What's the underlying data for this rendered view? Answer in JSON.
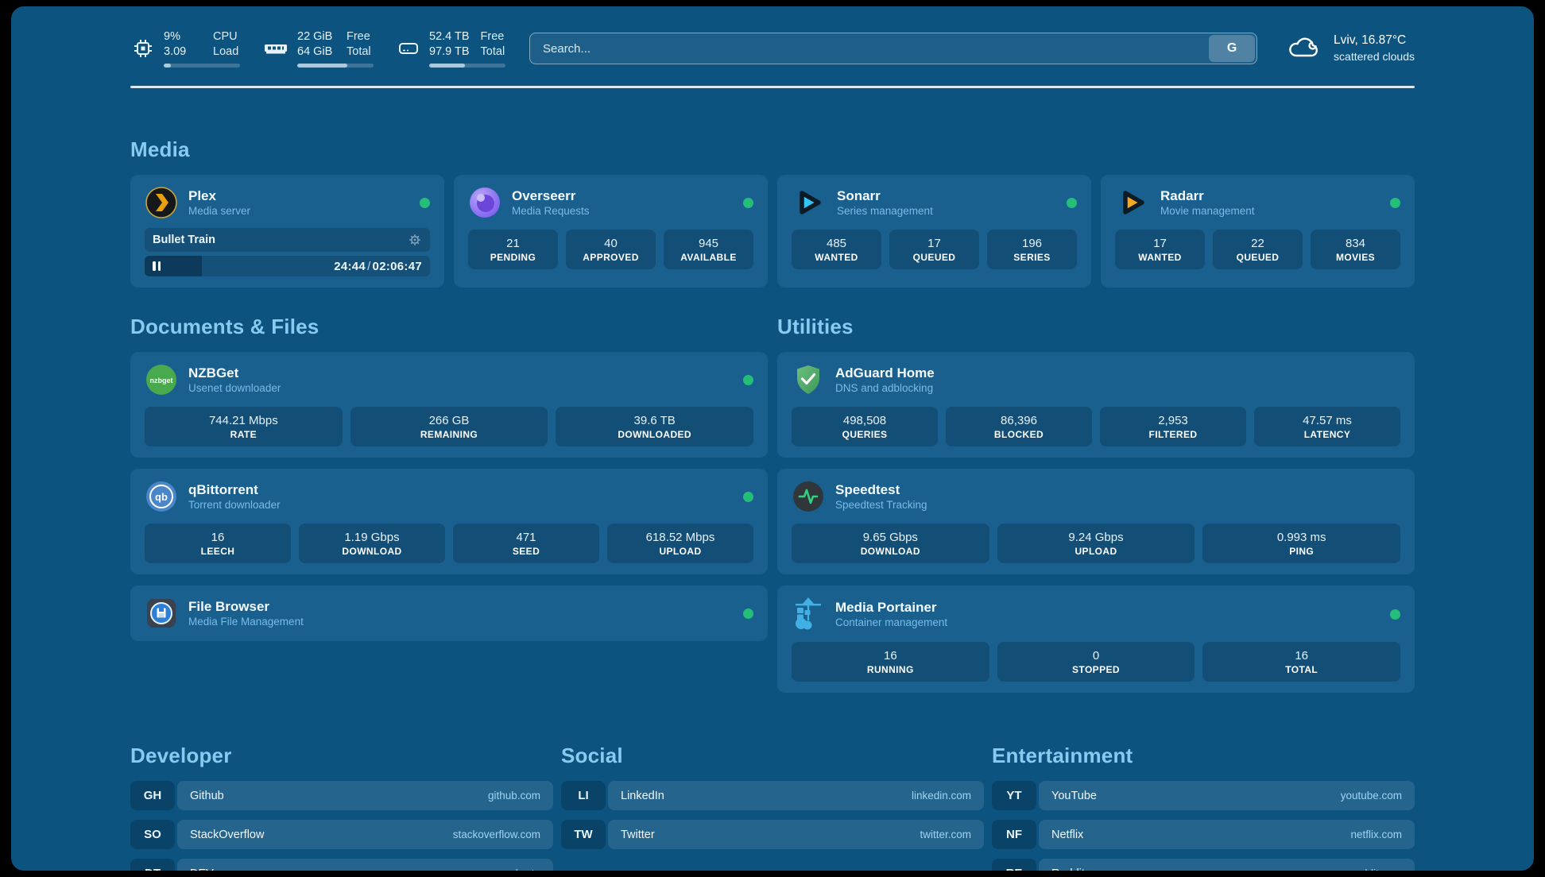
{
  "theme": {
    "background": "#000000",
    "surface": "#0D5380",
    "card": "#19608E",
    "section_title": "#87CBF0",
    "status_online": "#24BE78",
    "plex_accent": "#E8A00C",
    "sonarr_accent": "#35C5F4",
    "radarr_accent": "#F5A623",
    "speedtest_accent": "#35D07F"
  },
  "header": {
    "system_stats": [
      {
        "icon": "cpu-chip-icon",
        "values": [
          "9%",
          "3.09"
        ],
        "labels": [
          "CPU",
          "Load"
        ],
        "progress_pct": 9
      },
      {
        "icon": "ram-icon",
        "values": [
          "22 GiB",
          "64 GiB"
        ],
        "labels": [
          "Free",
          "Total"
        ],
        "progress_pct": 66
      },
      {
        "icon": "disk-icon",
        "values": [
          "52.4 TB",
          "97.9 TB"
        ],
        "labels": [
          "Free",
          "Total"
        ],
        "progress_pct": 47
      }
    ],
    "search": {
      "placeholder": "Search...",
      "engine_button_label": "G"
    },
    "weather": {
      "icon": "cloud-icon",
      "location_temperature": "Lviv, 16.87°C",
      "condition": "scattered clouds"
    }
  },
  "sections": {
    "media": {
      "title": "Media",
      "apps": [
        {
          "id": "plex",
          "icon": "plex-icon",
          "name": "Plex",
          "subtitle": "Media server",
          "online": true,
          "now_playing": {
            "title": "Bullet Train",
            "elapsed": "24:44",
            "duration": "02:06:47",
            "progress_pct": 20
          }
        },
        {
          "id": "overseerr",
          "icon": "overseerr-icon",
          "name": "Overseerr",
          "subtitle": "Media Requests",
          "online": true,
          "stats": [
            {
              "value": "21",
              "label": "PENDING"
            },
            {
              "value": "40",
              "label": "APPROVED"
            },
            {
              "value": "945",
              "label": "AVAILABLE"
            }
          ]
        },
        {
          "id": "sonarr",
          "icon": "sonarr-icon",
          "name": "Sonarr",
          "subtitle": "Series management",
          "online": true,
          "stats": [
            {
              "value": "485",
              "label": "WANTED"
            },
            {
              "value": "17",
              "label": "QUEUED"
            },
            {
              "value": "196",
              "label": "SERIES"
            }
          ]
        },
        {
          "id": "radarr",
          "icon": "radarr-icon",
          "name": "Radarr",
          "subtitle": "Movie management",
          "online": true,
          "stats": [
            {
              "value": "17",
              "label": "WANTED"
            },
            {
              "value": "22",
              "label": "QUEUED"
            },
            {
              "value": "834",
              "label": "MOVIES"
            }
          ]
        }
      ]
    },
    "documents_files": {
      "title": "Documents & Files",
      "apps": [
        {
          "id": "nzbget",
          "icon": "nzbget-icon",
          "name": "NZBGet",
          "subtitle": "Usenet downloader",
          "online": true,
          "stats": [
            {
              "value": "744.21 Mbps",
              "label": "RATE"
            },
            {
              "value": "266 GB",
              "label": "REMAINING"
            },
            {
              "value": "39.6 TB",
              "label": "DOWNLOADED"
            }
          ]
        },
        {
          "id": "qbittorrent",
          "icon": "qbittorrent-icon",
          "name": "qBittorrent",
          "subtitle": "Torrent downloader",
          "online": true,
          "stats": [
            {
              "value": "16",
              "label": "LEECH"
            },
            {
              "value": "1.19 Gbps",
              "label": "DOWNLOAD"
            },
            {
              "value": "471",
              "label": "SEED"
            },
            {
              "value": "618.52 Mbps",
              "label": "UPLOAD"
            }
          ]
        },
        {
          "id": "filebrowser",
          "icon": "filebrowser-icon",
          "name": "File Browser",
          "subtitle": "Media File Management",
          "online": true
        }
      ]
    },
    "utilities": {
      "title": "Utilities",
      "apps": [
        {
          "id": "adguard",
          "icon": "adguard-icon",
          "name": "AdGuard Home",
          "subtitle": "DNS and adblocking",
          "online": false,
          "stats": [
            {
              "value": "498,508",
              "label": "QUERIES"
            },
            {
              "value": "86,396",
              "label": "BLOCKED"
            },
            {
              "value": "2,953",
              "label": "FILTERED"
            },
            {
              "value": "47.57 ms",
              "label": "LATENCY"
            }
          ]
        },
        {
          "id": "speedtest",
          "icon": "speedtest-icon",
          "name": "Speedtest",
          "subtitle": "Speedtest Tracking",
          "online": false,
          "stats": [
            {
              "value": "9.65 Gbps",
              "label": "DOWNLOAD"
            },
            {
              "value": "9.24 Gbps",
              "label": "UPLOAD"
            },
            {
              "value": "0.993 ms",
              "label": "PING"
            }
          ]
        },
        {
          "id": "portainer",
          "icon": "portainer-icon",
          "name": "Media Portainer",
          "subtitle": "Container management",
          "online": true,
          "stats": [
            {
              "value": "16",
              "label": "RUNNING"
            },
            {
              "value": "0",
              "label": "STOPPED"
            },
            {
              "value": "16",
              "label": "TOTAL"
            }
          ]
        }
      ]
    }
  },
  "bookmarks": [
    {
      "title": "Developer",
      "links": [
        {
          "abbr": "GH",
          "name": "Github",
          "url": "github.com"
        },
        {
          "abbr": "SO",
          "name": "StackOverflow",
          "url": "stackoverflow.com"
        },
        {
          "abbr": "DT",
          "name": "DEV",
          "url": "dev.to"
        }
      ]
    },
    {
      "title": "Social",
      "links": [
        {
          "abbr": "LI",
          "name": "LinkedIn",
          "url": "linkedin.com"
        },
        {
          "abbr": "TW",
          "name": "Twitter",
          "url": "twitter.com"
        }
      ]
    },
    {
      "title": "Entertainment",
      "links": [
        {
          "abbr": "YT",
          "name": "YouTube",
          "url": "youtube.com"
        },
        {
          "abbr": "NF",
          "name": "Netflix",
          "url": "netflix.com"
        },
        {
          "abbr": "RE",
          "name": "Reddit",
          "url": "reddit.com"
        }
      ]
    }
  ]
}
